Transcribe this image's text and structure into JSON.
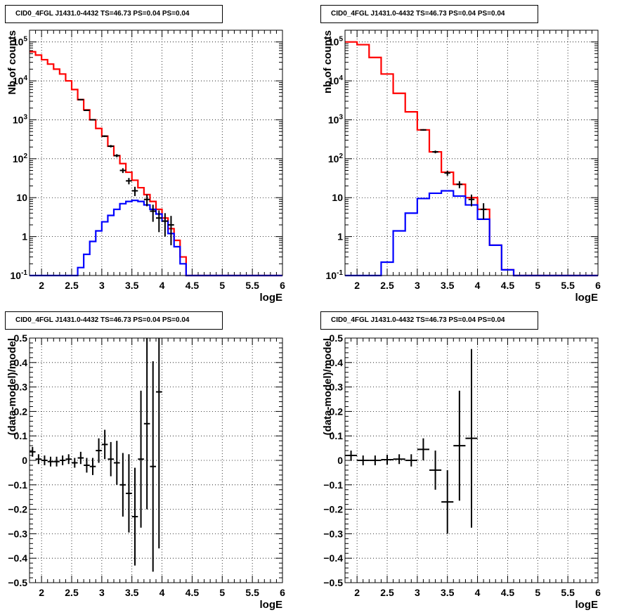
{
  "colors": {
    "data": "#000000",
    "model_total": "#ff0000",
    "model_source": "#0000ff",
    "grid": "#000000"
  },
  "chart_data": [
    {
      "type": "line",
      "title": "CID0_4FGL J1431.0-4432 TS=46.73 PS=0.04 PS=0.04",
      "xlabel": "logE",
      "ylabel": "Nb of counts",
      "xlim": [
        1.8,
        6.0
      ],
      "ylim": [
        0.1,
        200000
      ],
      "yscale": "log",
      "grid": true,
      "x_ticks": [
        "2",
        "2.5",
        "3",
        "3.5",
        "4",
        "4.5",
        "5",
        "5.5",
        "6"
      ],
      "y_ticks": [
        "10^-1",
        "1",
        "10",
        "10^2",
        "10^3",
        "10^4",
        "10^5"
      ],
      "bin_edges": [
        1.8,
        1.9,
        2.0,
        2.1,
        2.2,
        2.3,
        2.4,
        2.5,
        2.6,
        2.7,
        2.8,
        2.9,
        3.0,
        3.1,
        3.2,
        3.3,
        3.4,
        3.5,
        3.6,
        3.7,
        3.8,
        3.9,
        4.0,
        4.1,
        4.2,
        4.3,
        4.4,
        4.5,
        4.6,
        4.7,
        4.8,
        4.9,
        5.0,
        5.1,
        5.2,
        5.3,
        5.4,
        5.5,
        5.6,
        5.7,
        5.8,
        5.9,
        6.0
      ],
      "series": [
        {
          "role": "model_total",
          "style": "hist",
          "values": [
            56000,
            46000,
            35000,
            27000,
            20000,
            15000,
            10000,
            6000,
            3300,
            1800,
            1000,
            600,
            380,
            210,
            120,
            75,
            45,
            28,
            18,
            12,
            8,
            5,
            3,
            1.6,
            0.8,
            0.3,
            0.09,
            0.09,
            0.09,
            0.09,
            0.09,
            0.09,
            0.09,
            0.09,
            0.09,
            0.09,
            0.09,
            0.09,
            0.09,
            0.09,
            0.09,
            0.09
          ]
        },
        {
          "role": "model_source",
          "style": "hist",
          "values": [
            0.09,
            0.09,
            0.09,
            0.09,
            0.09,
            0.09,
            0.09,
            0.09,
            0.16,
            0.35,
            0.75,
            1.4,
            2.4,
            3.5,
            5,
            7,
            8,
            8.5,
            8,
            6.5,
            5,
            3.8,
            2.5,
            1.2,
            0.55,
            0.2,
            0.09,
            0.09,
            0.09,
            0.09,
            0.09,
            0.09,
            0.09,
            0.09,
            0.09,
            0.09,
            0.09,
            0.09,
            0.09,
            0.09,
            0.09,
            0.09
          ]
        },
        {
          "role": "data",
          "style": "errorbars",
          "points": [
            {
              "x": 2.65,
              "y": 3300,
              "err": 60
            },
            {
              "x": 2.75,
              "y": 1750,
              "err": 42
            },
            {
              "x": 2.85,
              "y": 1000,
              "err": 32
            },
            {
              "x": 3.05,
              "y": 380,
              "err": 20
            },
            {
              "x": 3.15,
              "y": 210,
              "err": 15
            },
            {
              "x": 3.25,
              "y": 120,
              "err": 11
            },
            {
              "x": 3.35,
              "y": 50,
              "err": 7
            },
            {
              "x": 3.45,
              "y": 27,
              "err": 5
            },
            {
              "x": 3.55,
              "y": 15,
              "err": 4
            },
            {
              "x": 3.75,
              "y": 9,
              "err": 3
            },
            {
              "x": 3.85,
              "y": 4.5,
              "err": 2.1
            },
            {
              "x": 3.95,
              "y": 3,
              "err": 1.7
            },
            {
              "x": 4.05,
              "y": 2.5,
              "err": 1.5
            },
            {
              "x": 4.15,
              "y": 2,
              "err": 1.4
            }
          ]
        }
      ]
    },
    {
      "type": "line",
      "title": "CID0_4FGL J1431.0-4432 TS=46.73 PS=0.04 PS=0.04",
      "xlabel": "logE",
      "ylabel": "nb of counts",
      "xlim": [
        1.8,
        6.0
      ],
      "ylim": [
        0.1,
        200000
      ],
      "yscale": "log",
      "grid": true,
      "x_ticks": [
        "2",
        "2.5",
        "3",
        "3.5",
        "4",
        "4.5",
        "5",
        "5.5",
        "6"
      ],
      "y_ticks": [
        "10^-1",
        "1",
        "10",
        "10^2",
        "10^3",
        "10^4",
        "10^5"
      ],
      "bin_edges": [
        1.8,
        2.0,
        2.2,
        2.4,
        2.6,
        2.8,
        3.0,
        3.2,
        3.4,
        3.6,
        3.8,
        4.0,
        4.2,
        4.4,
        4.6,
        4.8,
        5.0,
        5.2,
        5.4,
        5.6,
        5.8,
        6.0
      ],
      "series": [
        {
          "role": "model_total",
          "style": "hist",
          "values": [
            100000,
            85000,
            40000,
            15000,
            4800,
            1600,
            550,
            150,
            45,
            22,
            10,
            5,
            0.6,
            0.14,
            0.09,
            0.09,
            0.09,
            0.09,
            0.09,
            0.09,
            0.09
          ]
        },
        {
          "role": "model_source",
          "style": "hist",
          "values": [
            0.09,
            0.09,
            0.09,
            0.22,
            1.4,
            4,
            9.5,
            13,
            15,
            11,
            6.5,
            2.8,
            0.6,
            0.14,
            0.09,
            0.09,
            0.09,
            0.09,
            0.09,
            0.09,
            0.09
          ]
        },
        {
          "role": "data",
          "style": "errorbars",
          "points": [
            {
              "x": 3.1,
              "y": 550,
              "err": 24
            },
            {
              "x": 3.3,
              "y": 150,
              "err": 12
            },
            {
              "x": 3.5,
              "y": 43,
              "err": 6.5
            },
            {
              "x": 3.7,
              "y": 22,
              "err": 4.5
            },
            {
              "x": 3.9,
              "y": 9,
              "err": 3
            },
            {
              "x": 4.1,
              "y": 5,
              "err": 2.2
            }
          ]
        }
      ]
    },
    {
      "type": "scatter",
      "title": "CID0_4FGL J1431.0-4432 TS=46.73 PS=0.04 PS=0.04",
      "xlabel": "logE",
      "ylabel": "(data-model)/model",
      "xlim": [
        1.8,
        6.0
      ],
      "ylim": [
        -0.5,
        0.5
      ],
      "grid": true,
      "x_ticks": [
        "2",
        "2.5",
        "3",
        "3.5",
        "4",
        "4.5",
        "5",
        "5.5",
        "6"
      ],
      "y_ticks": [
        "−0.5",
        "−0.4",
        "−0.3",
        "−0.2",
        "−0.1",
        "0",
        "0.1",
        "0.2",
        "0.3",
        "0.4",
        "0.5"
      ],
      "xerr": 0.05,
      "points": [
        {
          "x": 1.85,
          "y": 0.035,
          "err": 0.02
        },
        {
          "x": 1.95,
          "y": 0.005,
          "err": 0.02
        },
        {
          "x": 2.05,
          "y": 0.0,
          "err": 0.02
        },
        {
          "x": 2.15,
          "y": -0.005,
          "err": 0.02
        },
        {
          "x": 2.25,
          "y": -0.005,
          "err": 0.02
        },
        {
          "x": 2.35,
          "y": 0.0,
          "err": 0.02
        },
        {
          "x": 2.45,
          "y": 0.005,
          "err": 0.02
        },
        {
          "x": 2.55,
          "y": -0.01,
          "err": 0.02
        },
        {
          "x": 2.65,
          "y": 0.01,
          "err": 0.025
        },
        {
          "x": 2.75,
          "y": -0.02,
          "err": 0.03
        },
        {
          "x": 2.85,
          "y": -0.025,
          "err": 0.035
        },
        {
          "x": 2.95,
          "y": 0.04,
          "err": 0.05
        },
        {
          "x": 3.05,
          "y": 0.065,
          "err": 0.06
        },
        {
          "x": 3.15,
          "y": 0.005,
          "err": 0.07
        },
        {
          "x": 3.25,
          "y": -0.01,
          "err": 0.09
        },
        {
          "x": 3.35,
          "y": -0.1,
          "err": 0.13
        },
        {
          "x": 3.45,
          "y": -0.135,
          "err": 0.16
        },
        {
          "x": 3.55,
          "y": -0.23,
          "err": 0.2
        },
        {
          "x": 3.65,
          "y": 0.005,
          "err": 0.28
        },
        {
          "x": 3.75,
          "y": 0.15,
          "err": 0.35
        },
        {
          "x": 3.85,
          "y": -0.025,
          "err": 0.43
        },
        {
          "x": 3.95,
          "y": 0.28,
          "err": 0.64
        }
      ]
    },
    {
      "type": "scatter",
      "title": "CID0_4FGL J1431.0-4432 TS=46.73 PS=0.04 PS=0.04",
      "xlabel": "logE",
      "ylabel": "(data-model)/model",
      "xlim": [
        1.8,
        6.0
      ],
      "ylim": [
        -0.5,
        0.5
      ],
      "grid": true,
      "x_ticks": [
        "2",
        "2.5",
        "3",
        "3.5",
        "4",
        "4.5",
        "5",
        "5.5",
        "6"
      ],
      "y_ticks": [
        "−0.5",
        "−0.4",
        "−0.3",
        "−0.2",
        "−0.1",
        "0",
        "0.1",
        "0.2",
        "0.3",
        "0.4",
        "0.5"
      ],
      "xerr": 0.1,
      "points": [
        {
          "x": 1.9,
          "y": 0.02,
          "err": 0.02
        },
        {
          "x": 2.1,
          "y": 0.0,
          "err": 0.02
        },
        {
          "x": 2.3,
          "y": 0.0,
          "err": 0.02
        },
        {
          "x": 2.5,
          "y": 0.003,
          "err": 0.02
        },
        {
          "x": 2.7,
          "y": 0.005,
          "err": 0.02
        },
        {
          "x": 2.9,
          "y": 0.0,
          "err": 0.025
        },
        {
          "x": 3.1,
          "y": 0.045,
          "err": 0.045
        },
        {
          "x": 3.3,
          "y": -0.04,
          "err": 0.08
        },
        {
          "x": 3.5,
          "y": -0.17,
          "err": 0.13
        },
        {
          "x": 3.7,
          "y": 0.06,
          "err": 0.225
        },
        {
          "x": 3.9,
          "y": 0.09,
          "err": 0.365
        }
      ]
    }
  ]
}
